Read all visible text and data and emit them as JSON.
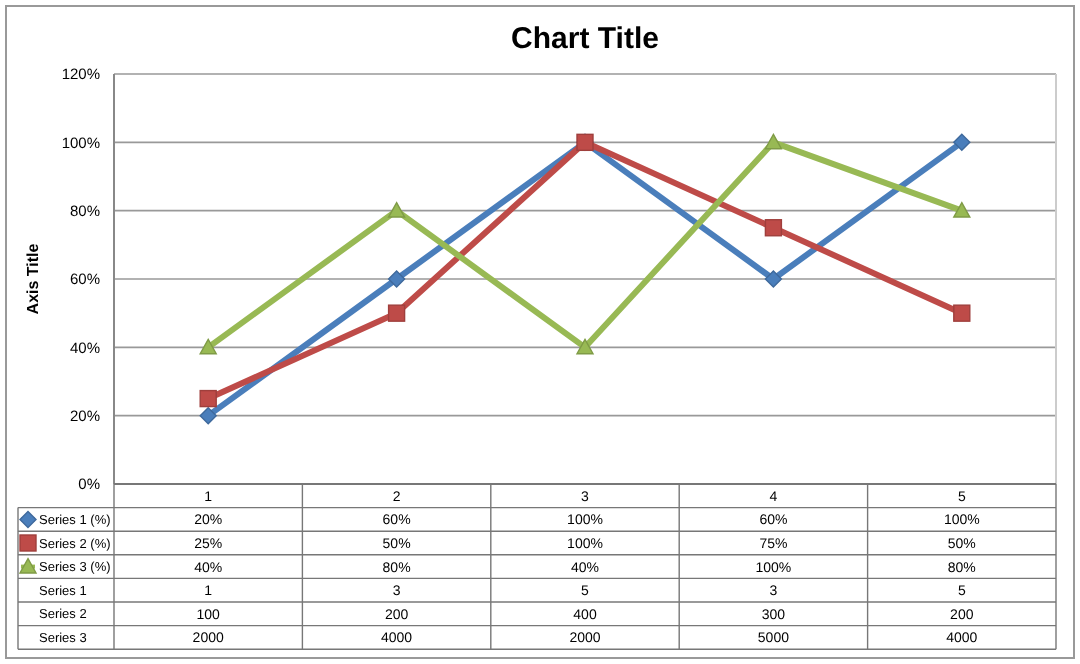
{
  "chart_data": {
    "type": "line",
    "title": "Chart Title",
    "ylabel": "Axis Title",
    "categories": [
      "1",
      "2",
      "3",
      "4",
      "5"
    ],
    "ylim": [
      0,
      120
    ],
    "yticks": [
      {
        "value": 0,
        "label": "0%"
      },
      {
        "value": 20,
        "label": "20%"
      },
      {
        "value": 40,
        "label": "40%"
      },
      {
        "value": 60,
        "label": "60%"
      },
      {
        "value": 80,
        "label": "80%"
      },
      {
        "value": 100,
        "label": "100%"
      },
      {
        "value": 120,
        "label": "120%"
      }
    ],
    "grid": "y",
    "legend": "bottom",
    "series": [
      {
        "name": "Series 1 (%)",
        "color": "#4a7ebb",
        "marker": "diamond",
        "values": [
          20,
          60,
          100,
          60,
          100
        ],
        "value_labels": [
          "20%",
          "60%",
          "100%",
          "60%",
          "100%"
        ]
      },
      {
        "name": "Series 2 (%)",
        "color": "#be4b48",
        "marker": "square",
        "values": [
          25,
          50,
          100,
          75,
          50
        ],
        "value_labels": [
          "25%",
          "50%",
          "100%",
          "75%",
          "50%"
        ]
      },
      {
        "name": "Series 3 (%)",
        "color": "#98b954",
        "marker": "triangle",
        "values": [
          40,
          80,
          40,
          100,
          80
        ],
        "value_labels": [
          "40%",
          "80%",
          "40%",
          "100%",
          "80%"
        ]
      },
      {
        "name": "Series 1",
        "values": [
          null,
          null,
          null,
          null,
          null
        ],
        "value_labels": [
          "1",
          "3",
          "5",
          "3",
          "5"
        ]
      },
      {
        "name": "Series 2",
        "values": [
          null,
          null,
          null,
          null,
          null
        ],
        "value_labels": [
          "100",
          "200",
          "400",
          "300",
          "200"
        ]
      },
      {
        "name": "Series 3",
        "values": [
          null,
          null,
          null,
          null,
          null
        ],
        "value_labels": [
          "2000",
          "4000",
          "2000",
          "5000",
          "4000"
        ]
      }
    ]
  }
}
